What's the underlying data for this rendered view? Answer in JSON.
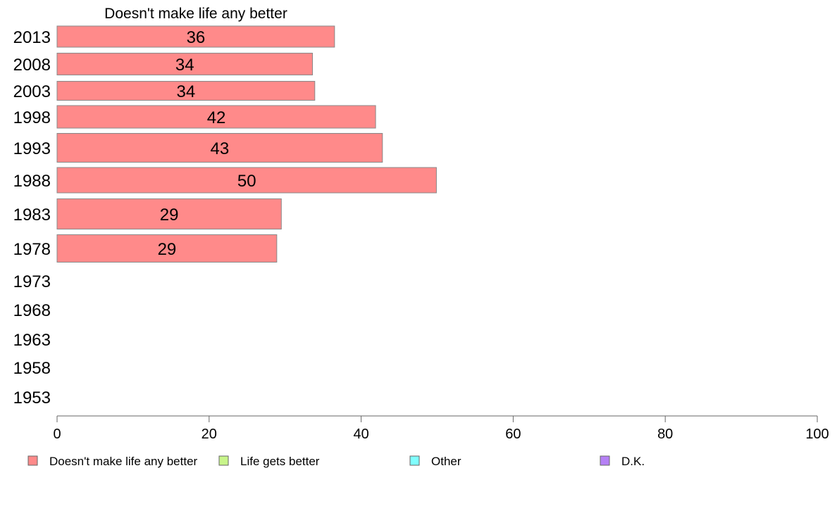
{
  "chart_data": {
    "type": "bar",
    "orientation": "horizontal",
    "title": "Doesn't make life any better",
    "categories": [
      "2013",
      "2008",
      "2003",
      "1998",
      "1993",
      "1988",
      "1983",
      "1978",
      "1973",
      "1968",
      "1963",
      "1958",
      "1953"
    ],
    "series": [
      {
        "name": "Doesn't make life any better",
        "color": "#ff8a8a",
        "values": [
          36.5,
          33.6,
          33.9,
          41.9,
          42.8,
          49.9,
          29.5,
          28.9,
          null,
          null,
          null,
          null,
          null
        ],
        "labels": [
          "36",
          "34",
          "34",
          "42",
          "43",
          "50",
          "29",
          "29",
          "",
          "",
          "",
          "",
          ""
        ]
      }
    ],
    "xlim": [
      0,
      100
    ],
    "xticks": [
      "0",
      "20",
      "40",
      "60",
      "80",
      "100"
    ],
    "grid": false,
    "legend": {
      "placement": "bottom",
      "entries": [
        {
          "label": "Doesn't make life any better",
          "color": "#ff8a8a"
        },
        {
          "label": "Life gets better",
          "color": "#c8f58a"
        },
        {
          "label": "Other",
          "color": "#80ffff"
        },
        {
          "label": "D.K.",
          "color": "#b580f5"
        }
      ]
    }
  }
}
